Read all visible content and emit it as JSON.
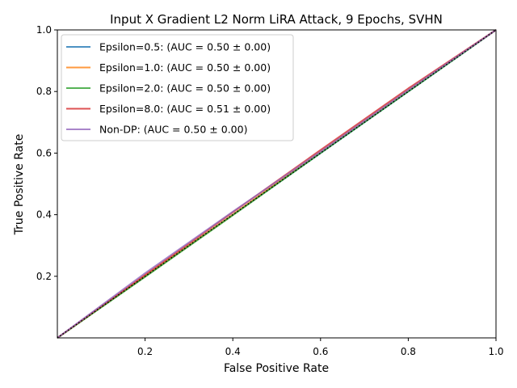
{
  "chart_data": {
    "type": "line",
    "title": "Input X Gradient L2 Norm LiRA Attack, 9 Epochs, SVHN",
    "xlabel": "False Positive Rate",
    "ylabel": "True Positive Rate",
    "xlim": [
      0,
      1
    ],
    "ylim": [
      0,
      1
    ],
    "x_ticks": [
      {
        "value": 0.2,
        "label": "0.2"
      },
      {
        "value": 0.4,
        "label": "0.4"
      },
      {
        "value": 0.6,
        "label": "0.6"
      },
      {
        "value": 0.8,
        "label": "0.8"
      },
      {
        "value": 1.0,
        "label": "1.0"
      }
    ],
    "y_ticks": [
      {
        "value": 0.2,
        "label": "0.2"
      },
      {
        "value": 0.4,
        "label": "0.4"
      },
      {
        "value": 0.6,
        "label": "0.6"
      },
      {
        "value": 0.8,
        "label": "0.8"
      },
      {
        "value": 1.0,
        "label": "1.0"
      }
    ],
    "grid": false,
    "legend_position": "top-left",
    "series": [
      {
        "name": "Epsilon=0.5: (AUC = 0.50 ± 0.00)",
        "color": "#1f77b4",
        "points": [
          [
            0,
            0
          ],
          [
            0.2,
            0.2
          ],
          [
            0.4,
            0.4
          ],
          [
            0.6,
            0.6
          ],
          [
            0.8,
            0.8
          ],
          [
            1.0,
            1.0
          ]
        ]
      },
      {
        "name": "Epsilon=1.0: (AUC = 0.50 ± 0.00)",
        "color": "#ff7f0e",
        "points": [
          [
            0,
            0
          ],
          [
            0.2,
            0.2
          ],
          [
            0.4,
            0.4
          ],
          [
            0.6,
            0.605
          ],
          [
            0.8,
            0.805
          ],
          [
            1.0,
            1.0
          ]
        ]
      },
      {
        "name": "Epsilon=2.0: (AUC = 0.50 ± 0.00)",
        "color": "#2ca02c",
        "points": [
          [
            0,
            0
          ],
          [
            0.2,
            0.198
          ],
          [
            0.4,
            0.398
          ],
          [
            0.6,
            0.6
          ],
          [
            0.8,
            0.8
          ],
          [
            1.0,
            1.0
          ]
        ]
      },
      {
        "name": "Epsilon=8.0: (AUC = 0.51 ± 0.00)",
        "color": "#d62728",
        "points": [
          [
            0,
            0
          ],
          [
            0.2,
            0.205
          ],
          [
            0.4,
            0.408
          ],
          [
            0.6,
            0.61
          ],
          [
            0.8,
            0.81
          ],
          [
            1.0,
            1.0
          ]
        ]
      },
      {
        "name": "Non-DP: (AUC = 0.50 ± 0.00)",
        "color": "#9467bd",
        "points": [
          [
            0,
            0
          ],
          [
            0.2,
            0.21
          ],
          [
            0.4,
            0.41
          ],
          [
            0.6,
            0.605
          ],
          [
            0.8,
            0.805
          ],
          [
            1.0,
            1.0
          ]
        ]
      }
    ],
    "reference_line": {
      "style": "dotted",
      "color": "#000000",
      "points": [
        [
          0,
          0
        ],
        [
          1,
          1
        ]
      ]
    }
  }
}
